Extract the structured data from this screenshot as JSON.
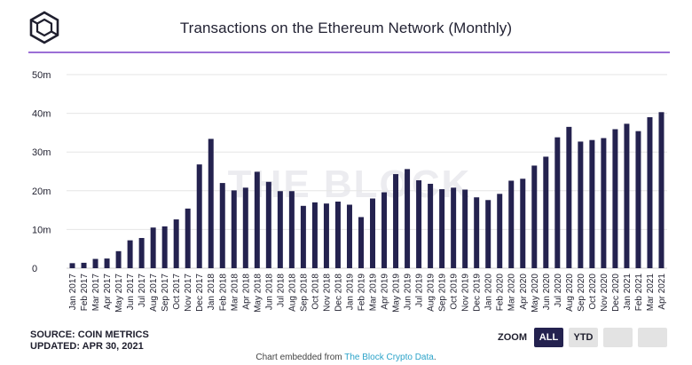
{
  "header": {
    "logo_icon": "cube-icon",
    "title": "Transactions on the Ethereum Network (Monthly)"
  },
  "watermark": "THE BLOCK",
  "source": {
    "line1": "SOURCE: COIN METRICS",
    "line2": "UPDATED: APR 30, 2021"
  },
  "zoom": {
    "label": "ZOOM",
    "all_label": "ALL",
    "ytd_label": "YTD"
  },
  "footer": {
    "prefix": "Chart embedded from ",
    "link_text": "The Block Crypto Data",
    "suffix": "."
  },
  "colors": {
    "bar": "#24224f",
    "accent_rule": "#9b6fd6",
    "grid": "#e6e6e6"
  },
  "chart_data": {
    "type": "bar",
    "title": "Transactions on the Ethereum Network (Monthly)",
    "xlabel": "",
    "ylabel": "",
    "ylim": [
      0,
      50
    ],
    "yticks": [
      "0",
      "10m",
      "20m",
      "30m",
      "40m",
      "50m"
    ],
    "grid": true,
    "categories": [
      "Jan 2017",
      "Feb 2017",
      "Mar 2017",
      "Apr 2017",
      "May 2017",
      "Jun 2017",
      "Jul 2017",
      "Aug 2017",
      "Sep 2017",
      "Oct 2017",
      "Nov 2017",
      "Dec 2017",
      "Jan 2018",
      "Feb 2018",
      "Mar 2018",
      "Apr 2018",
      "May 2018",
      "Jun 2018",
      "Jul 2018",
      "Aug 2018",
      "Sep 2018",
      "Oct 2018",
      "Nov 2018",
      "Dec 2018",
      "Jan 2019",
      "Feb 2019",
      "Mar 2019",
      "Apr 2019",
      "May 2019",
      "Jun 2019",
      "Jul 2019",
      "Aug 2019",
      "Sep 2019",
      "Oct 2019",
      "Nov 2019",
      "Dec 2019",
      "Jan 2020",
      "Feb 2020",
      "Mar 2020",
      "Apr 2020",
      "May 2020",
      "Jun 2020",
      "Jul 2020",
      "Aug 2020",
      "Sep 2020",
      "Oct 2020",
      "Nov 2020",
      "Dec 2020",
      "Jan 2021",
      "Feb 2021",
      "Mar 2021",
      "Apr 2021"
    ],
    "values": [
      1.3,
      1.4,
      2.4,
      2.5,
      4.4,
      7.2,
      7.8,
      10.5,
      10.8,
      12.6,
      15.4,
      26.8,
      33.4,
      22.0,
      20.1,
      20.8,
      24.9,
      22.3,
      19.9,
      19.9,
      16.1,
      17.0,
      16.7,
      17.2,
      16.4,
      13.2,
      18.0,
      19.6,
      24.3,
      25.6,
      22.7,
      21.8,
      20.4,
      20.8,
      20.3,
      18.3,
      17.6,
      19.2,
      22.6,
      23.1,
      26.5,
      28.8,
      33.8,
      36.5,
      32.7,
      33.1,
      33.6,
      35.9,
      37.3,
      35.4,
      39.0,
      40.3
    ]
  }
}
